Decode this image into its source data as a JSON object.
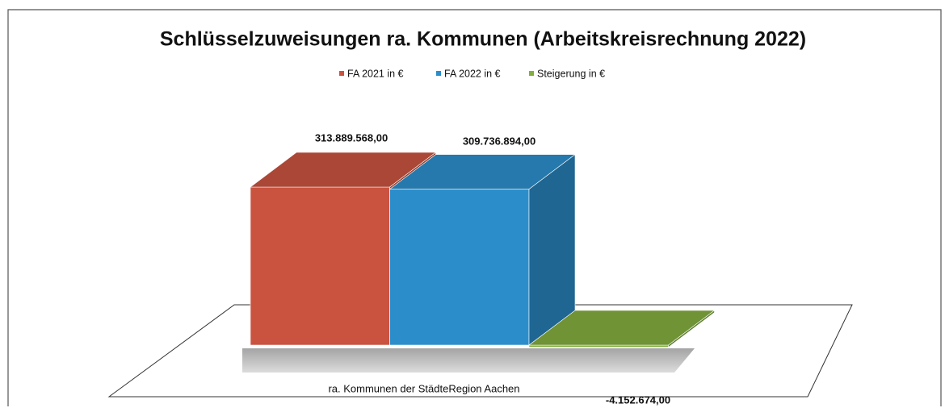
{
  "chart_data": {
    "type": "bar3d",
    "title": "Schlüsselzuweisungen ra. Kommunen (Arbeitskreisrechnung 2022)",
    "categories": [
      "ra. Kommunen der StädteRegion Aachen"
    ],
    "series": [
      {
        "name": "FA 2021 in €",
        "color": "#c9533f",
        "values": [
          313889568
        ],
        "value_labels": [
          "313.889.568,00"
        ]
      },
      {
        "name": "FA 2022 in €",
        "color": "#2b8ecb",
        "values": [
          309736894
        ],
        "value_labels": [
          "309.736.894,00"
        ]
      },
      {
        "name": "Steigerung in €",
        "color": "#83ad3e",
        "values": [
          -4152674
        ],
        "value_labels": [
          "-4.152.674,00"
        ]
      }
    ],
    "legend": "top"
  }
}
